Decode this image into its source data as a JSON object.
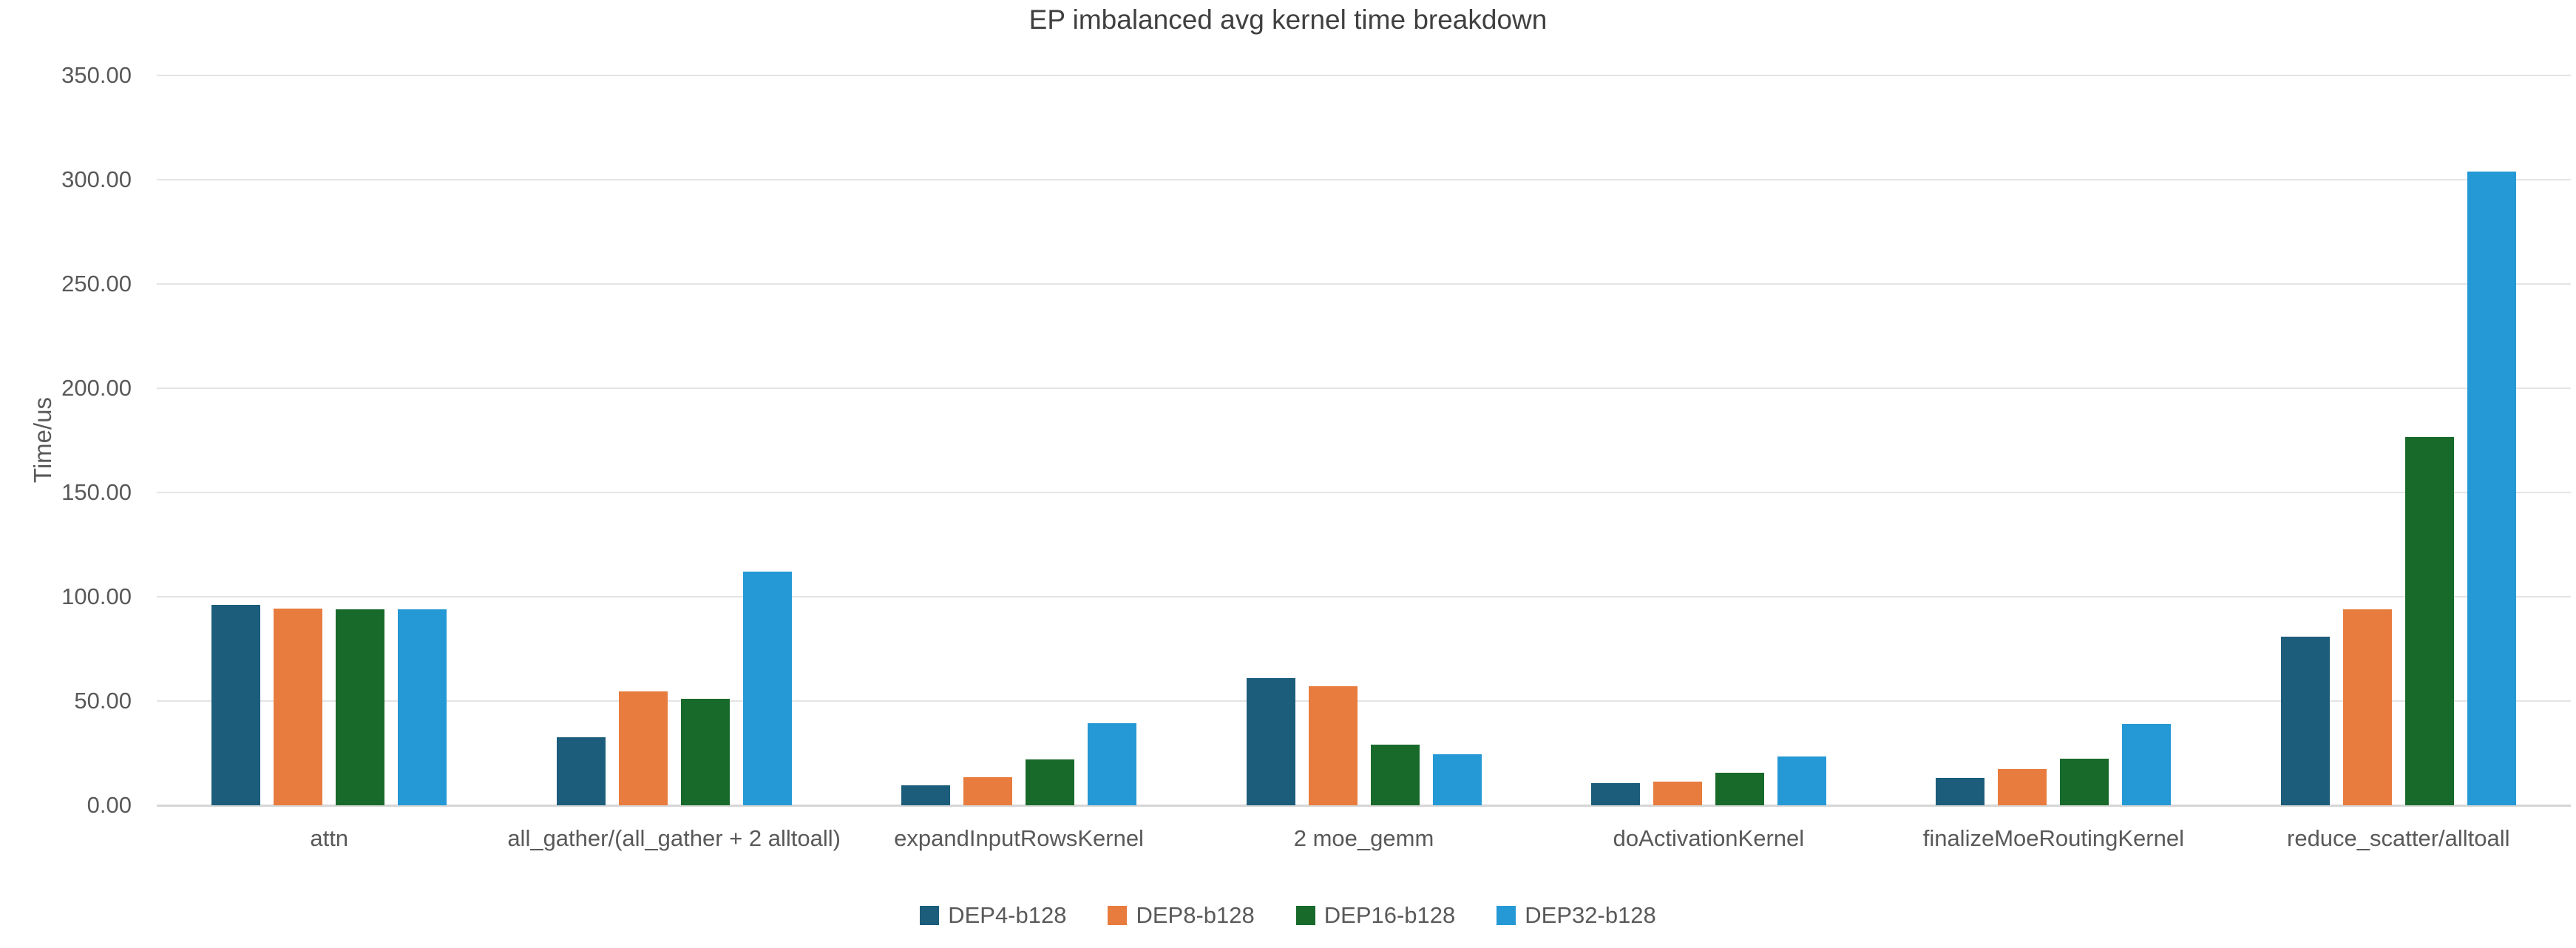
{
  "title": "EP imbalanced avg kernel time breakdown",
  "chart_data": {
    "type": "bar",
    "title": "EP imbalanced avg kernel time breakdown",
    "xlabel": "",
    "ylabel": "Time/us",
    "ylim": [
      0,
      350
    ],
    "ytick_step": 50,
    "ytick_decimals": 2,
    "grid": true,
    "legend_position": "bottom",
    "categories": [
      "attn",
      "all_gather/(all_gather + 2 alltoall)",
      "expandInputRowsKernel",
      "2 moe_gemm",
      "doActivationKernel",
      "finalizeMoeRoutingKernel",
      "reduce_scatter/alltoall"
    ],
    "series": [
      {
        "name": "DEP4-b128",
        "color": "#1c5d7b",
        "values": [
          96.0,
          32.5,
          9.5,
          61.0,
          10.5,
          13.0,
          81.0
        ]
      },
      {
        "name": "DEP8-b128",
        "color": "#e87c3e",
        "values": [
          94.5,
          54.5,
          13.5,
          57.0,
          11.5,
          17.5,
          94.0
        ]
      },
      {
        "name": "DEP16-b128",
        "color": "#186a2b",
        "values": [
          94.0,
          51.0,
          22.0,
          29.0,
          15.5,
          22.5,
          176.5
        ]
      },
      {
        "name": "DEP32-b128",
        "color": "#2599d5",
        "values": [
          94.0,
          112.0,
          39.5,
          24.5,
          23.5,
          39.0,
          304.0
        ]
      }
    ],
    "colors": {
      "grid": "#e4e4e4",
      "baseline": "#d6d6d6",
      "axis_text": "#595959",
      "title_text": "#404040"
    }
  }
}
